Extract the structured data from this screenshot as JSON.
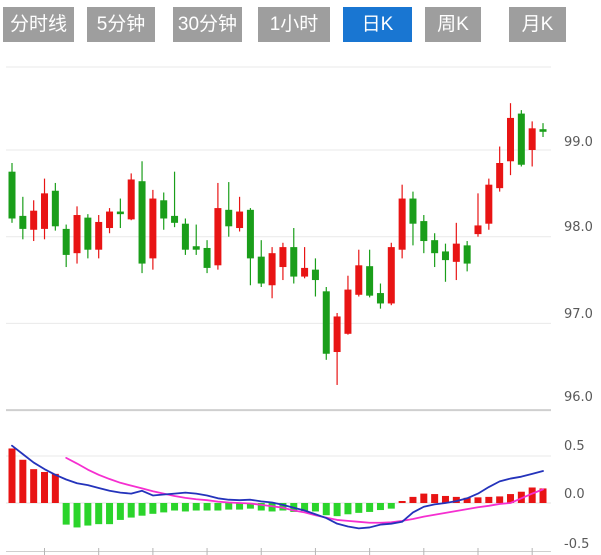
{
  "toolbar": {
    "tabs": [
      {
        "label": "分时线",
        "active": false
      },
      {
        "label": "5分钟",
        "active": false
      },
      {
        "label": "30分钟",
        "active": false
      },
      {
        "label": "1小时",
        "active": false
      },
      {
        "label": "日K",
        "active": true
      },
      {
        "label": "周K",
        "active": false
      },
      {
        "label": "月K",
        "active": false
      }
    ]
  },
  "colors": {
    "tab_active_bg": "#1976d2",
    "tab_inactive_bg": "#9e9e9e",
    "tab_text": "#ffffff",
    "candle_up": "#e81414",
    "candle_down": "#1a9e1a",
    "hist_up": "#e81414",
    "hist_down": "#2bd42b",
    "dif_line": "#2433bb",
    "dea_line": "#f52fd0",
    "grid": "#e9e9e9",
    "axis": "#cfcfcf",
    "tick": "#b5b5b5",
    "label_text": "#595959"
  },
  "chart_data": {
    "type": "candlestick+macd",
    "convention": "red=up green=down",
    "price_axis": {
      "labels": [
        "99.0",
        "98.0",
        "97.0",
        "96.0"
      ],
      "values": [
        99.0,
        98.0,
        97.0,
        96.0
      ],
      "range": [
        95.95,
        99.95
      ]
    },
    "macd_axis": {
      "labels": [
        "0.5",
        "0.0",
        "-0.5"
      ],
      "values": [
        0.5,
        0.0,
        -0.5
      ],
      "range": [
        -0.52,
        0.65
      ]
    },
    "x_ticks_every": 5,
    "candles": [
      [
        98.75,
        98.85,
        98.16,
        98.21
      ],
      [
        98.24,
        98.46,
        97.97,
        98.09
      ],
      [
        98.08,
        98.42,
        97.95,
        98.3
      ],
      [
        98.09,
        98.67,
        97.97,
        98.5
      ],
      [
        98.53,
        98.62,
        98.07,
        98.12
      ],
      [
        98.09,
        98.14,
        97.65,
        97.79
      ],
      [
        97.81,
        98.35,
        97.69,
        98.25
      ],
      [
        98.22,
        98.26,
        97.75,
        97.85
      ],
      [
        97.85,
        98.25,
        97.75,
        98.17
      ],
      [
        98.1,
        98.33,
        98.04,
        98.29
      ],
      [
        98.29,
        98.44,
        98.1,
        98.26
      ],
      [
        98.2,
        98.73,
        98.19,
        98.66
      ],
      [
        98.64,
        98.87,
        97.58,
        97.69
      ],
      [
        97.75,
        98.54,
        97.62,
        98.44
      ],
      [
        98.42,
        98.51,
        98.08,
        98.21
      ],
      [
        98.24,
        98.75,
        98.11,
        98.16
      ],
      [
        98.15,
        98.21,
        97.79,
        97.85
      ],
      [
        97.89,
        98.14,
        97.79,
        97.85
      ],
      [
        97.87,
        97.96,
        97.58,
        97.64
      ],
      [
        97.67,
        98.62,
        97.62,
        98.33
      ],
      [
        98.31,
        98.63,
        98.0,
        98.12
      ],
      [
        98.1,
        98.46,
        98.06,
        98.29
      ],
      [
        98.31,
        98.33,
        97.44,
        97.75
      ],
      [
        97.77,
        97.96,
        97.42,
        97.46
      ],
      [
        97.44,
        97.88,
        97.29,
        97.81
      ],
      [
        97.65,
        97.93,
        97.5,
        97.88
      ],
      [
        97.88,
        98.1,
        97.46,
        97.54
      ],
      [
        97.54,
        97.88,
        97.52,
        97.64
      ],
      [
        97.62,
        97.75,
        97.31,
        97.5
      ],
      [
        97.37,
        97.42,
        96.58,
        96.65
      ],
      [
        96.67,
        97.12,
        96.29,
        97.08
      ],
      [
        96.88,
        97.55,
        96.87,
        97.39
      ],
      [
        97.33,
        97.85,
        97.31,
        97.67
      ],
      [
        97.66,
        97.85,
        97.3,
        97.32
      ],
      [
        97.35,
        97.46,
        97.17,
        97.23
      ],
      [
        97.23,
        97.93,
        97.21,
        97.88
      ],
      [
        97.85,
        98.6,
        97.75,
        98.44
      ],
      [
        98.44,
        98.52,
        97.9,
        98.15
      ],
      [
        98.18,
        98.25,
        97.81,
        97.95
      ],
      [
        97.96,
        98.04,
        97.65,
        97.81
      ],
      [
        97.83,
        97.92,
        97.48,
        97.73
      ],
      [
        97.71,
        98.16,
        97.5,
        97.92
      ],
      [
        97.9,
        97.95,
        97.6,
        97.69
      ],
      [
        98.03,
        98.5,
        98.0,
        98.13
      ],
      [
        98.15,
        98.67,
        98.08,
        98.6
      ],
      [
        98.56,
        99.04,
        98.52,
        98.85
      ],
      [
        98.87,
        99.54,
        98.71,
        99.37
      ],
      [
        99.42,
        99.46,
        98.81,
        98.83
      ],
      [
        99.0,
        99.33,
        98.81,
        99.25
      ],
      [
        99.24,
        99.31,
        99.15,
        99.21
      ]
    ],
    "macd": {
      "histogram": [
        0.58,
        0.46,
        0.36,
        0.33,
        0.31,
        -0.23,
        -0.26,
        -0.24,
        -0.225,
        -0.225,
        -0.18,
        -0.155,
        -0.135,
        -0.115,
        -0.1,
        -0.08,
        -0.09,
        -0.08,
        -0.08,
        -0.08,
        -0.07,
        -0.07,
        -0.06,
        -0.08,
        -0.09,
        -0.08,
        -0.095,
        -0.085,
        -0.09,
        -0.13,
        -0.14,
        -0.12,
        -0.105,
        -0.095,
        -0.075,
        -0.06,
        0.01,
        0.065,
        0.1,
        0.095,
        0.075,
        0.065,
        0.055,
        0.06,
        0.065,
        0.07,
        0.095,
        0.12,
        0.165,
        0.155
      ],
      "dif": [
        0.61,
        0.52,
        0.43,
        0.36,
        0.3,
        0.25,
        0.21,
        0.19,
        0.16,
        0.13,
        0.11,
        0.1,
        0.13,
        0.08,
        0.09,
        0.1,
        0.11,
        0.1,
        0.08,
        0.05,
        0.035,
        0.03,
        0.035,
        0.017,
        0.005,
        -0.02,
        -0.05,
        -0.08,
        -0.12,
        -0.16,
        -0.22,
        -0.25,
        -0.27,
        -0.26,
        -0.23,
        -0.22,
        -0.2,
        -0.1,
        -0.04,
        -0.015,
        0.0,
        0.02,
        0.05,
        0.1,
        0.17,
        0.23,
        0.26,
        0.28,
        0.31,
        0.34
      ],
      "dea": [
        null,
        null,
        null,
        null,
        null,
        0.48,
        0.42,
        0.355,
        0.3,
        0.255,
        0.215,
        0.185,
        0.155,
        0.125,
        0.1,
        0.075,
        0.055,
        0.04,
        0.03,
        0.015,
        0.005,
        0.0,
        -0.005,
        -0.02,
        -0.035,
        -0.05,
        -0.08,
        -0.1,
        -0.13,
        -0.155,
        -0.18,
        -0.19,
        -0.2,
        -0.21,
        -0.21,
        -0.205,
        -0.19,
        -0.17,
        -0.145,
        -0.125,
        -0.105,
        -0.085,
        -0.065,
        -0.045,
        -0.03,
        -0.01,
        0.0,
        0.05,
        0.1,
        0.145
      ]
    }
  }
}
